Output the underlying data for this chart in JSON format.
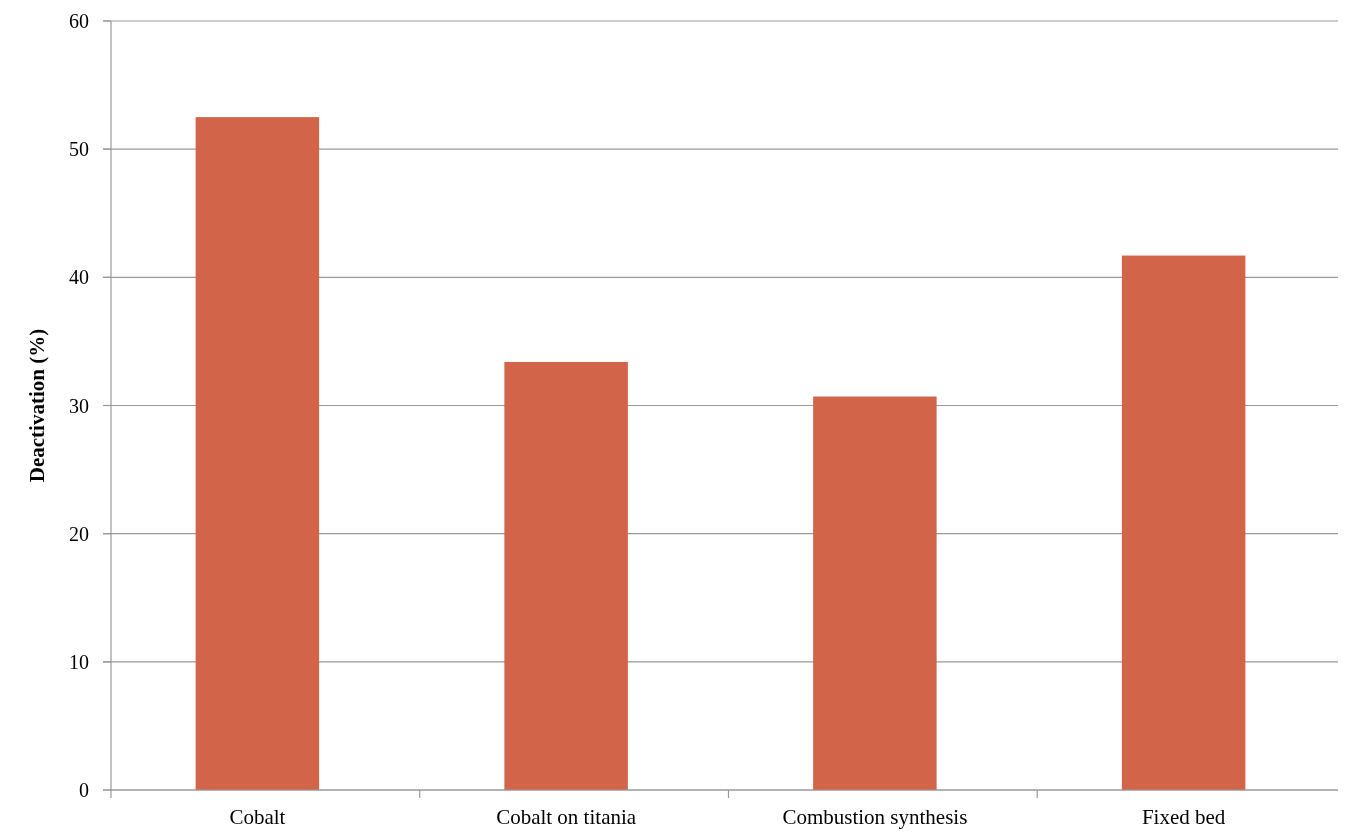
{
  "chart_data": {
    "type": "bar",
    "ylabel": "Deactivation (%)",
    "categories": [
      "Cobalt",
      "Cobalt on titania",
      "Combustion synthesis",
      "Fixed bed"
    ],
    "values": [
      52.5,
      33.4,
      30.7,
      41.7
    ],
    "color": "#d2644a",
    "ylim": [
      0,
      60
    ],
    "yticks": [
      0,
      10,
      20,
      30,
      40,
      50,
      60
    ],
    "grid": "y"
  }
}
